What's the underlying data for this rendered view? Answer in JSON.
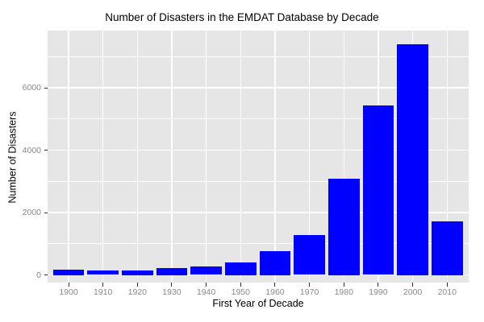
{
  "chart_data": {
    "type": "bar",
    "title": "Number of Disasters in the EMDAT Database by Decade",
    "xlabel": "First Year of Decade",
    "ylabel": "Number of Disasters",
    "categories": [
      "1900",
      "1910",
      "1920",
      "1930",
      "1940",
      "1950",
      "1960",
      "1970",
      "1980",
      "1990",
      "2000",
      "2010"
    ],
    "values": [
      175,
      130,
      150,
      225,
      270,
      400,
      750,
      1290,
      3075,
      5430,
      7400,
      1725
    ],
    "ylim": [
      0,
      7810
    ],
    "y_major_ticks": [
      0,
      2000,
      4000,
      6000
    ],
    "y_minor_gridlines": [
      1000,
      3000,
      5000,
      7000
    ],
    "grid": true,
    "legend": "none",
    "colors": {
      "bar": "#0000FF",
      "panel_background": "#E6E6E6",
      "gridline": "#FFFFFF",
      "tick_label": "#8A8A8A",
      "tick_mark": "#333333",
      "axis_title": "#000000",
      "title": "#000000",
      "page_background": "#FFFFFF"
    }
  }
}
